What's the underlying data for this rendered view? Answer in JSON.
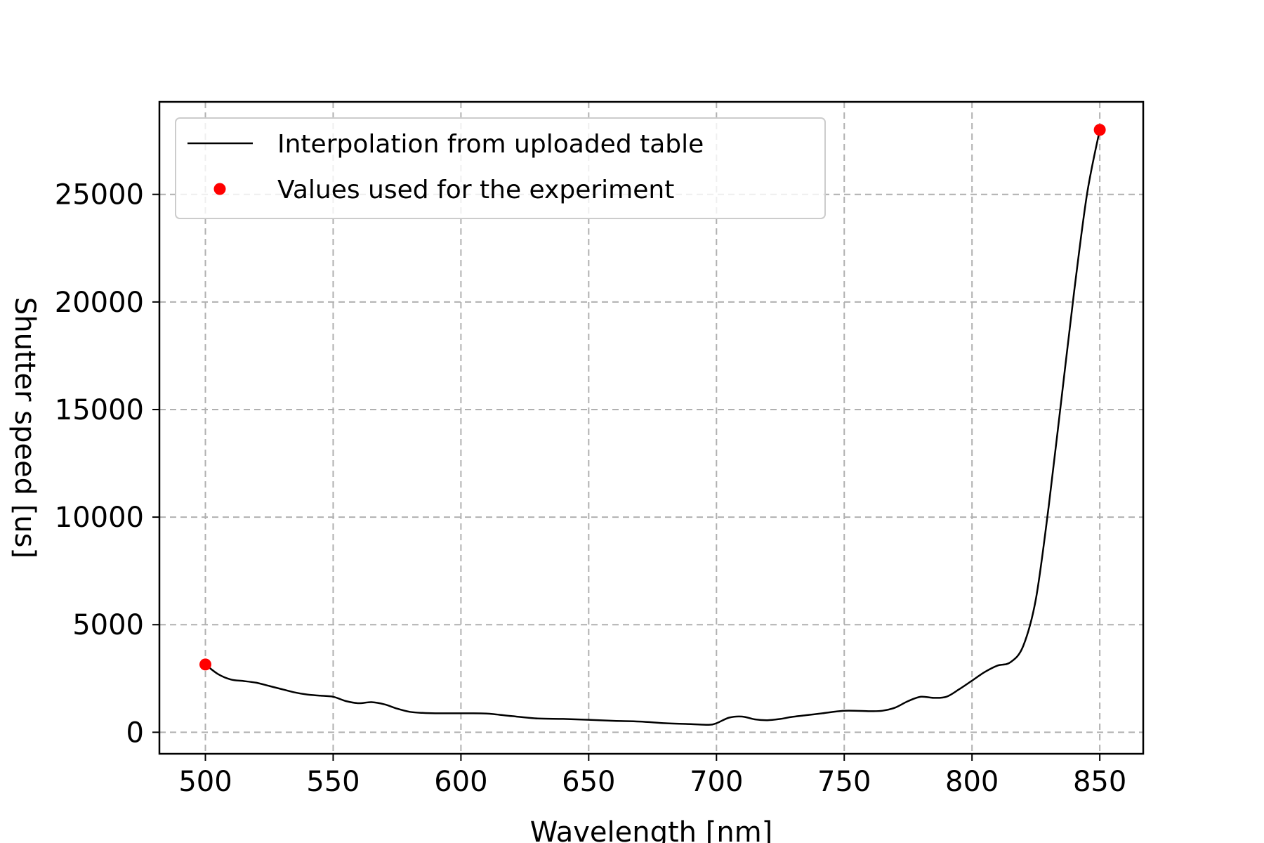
{
  "chart_data": {
    "type": "line",
    "title": "",
    "xlabel": "Wavelength [nm]",
    "ylabel": "Shutter speed [us]",
    "xlim": [
      482,
      867
    ],
    "ylim": [
      -1000,
      29300
    ],
    "xticks": [
      500,
      550,
      600,
      650,
      700,
      750,
      800,
      850
    ],
    "yticks": [
      0,
      5000,
      10000,
      15000,
      20000,
      25000
    ],
    "x_tick_labels": [
      "500",
      "550",
      "600",
      "650",
      "700",
      "750",
      "800",
      "850"
    ],
    "y_tick_labels": [
      "0",
      "5000",
      "10000",
      "15000",
      "20000",
      "25000"
    ],
    "grid": true,
    "legend": {
      "position": "top-left",
      "entries": [
        "Interpolation from uploaded table",
        "Values used for the experiment"
      ]
    },
    "series": [
      {
        "name": "Interpolation from uploaded table",
        "style": "line",
        "color": "#000000",
        "x": [
          500,
          505,
          510,
          515,
          520,
          525,
          530,
          535,
          540,
          545,
          550,
          555,
          560,
          565,
          570,
          575,
          580,
          585,
          590,
          600,
          610,
          620,
          630,
          640,
          650,
          660,
          670,
          680,
          690,
          697,
          700,
          705,
          710,
          715,
          720,
          725,
          730,
          740,
          750,
          760,
          765,
          770,
          775,
          780,
          785,
          790,
          795,
          800,
          805,
          810,
          815,
          820,
          825,
          830,
          835,
          840,
          845,
          850
        ],
        "y": [
          3150,
          2700,
          2450,
          2380,
          2300,
          2150,
          2000,
          1850,
          1750,
          1700,
          1650,
          1450,
          1350,
          1400,
          1300,
          1100,
          950,
          900,
          880,
          880,
          870,
          750,
          640,
          620,
          580,
          530,
          500,
          420,
          380,
          350,
          420,
          680,
          730,
          600,
          560,
          620,
          720,
          860,
          1000,
          980,
          1000,
          1150,
          1450,
          1650,
          1600,
          1650,
          2000,
          2400,
          2800,
          3100,
          3250,
          4000,
          6200,
          10500,
          15500,
          20500,
          25000,
          28000
        ]
      },
      {
        "name": "Values used for the experiment",
        "style": "points",
        "color": "#ff0000",
        "x": [
          500,
          850
        ],
        "y": [
          3150,
          28000
        ]
      }
    ]
  }
}
